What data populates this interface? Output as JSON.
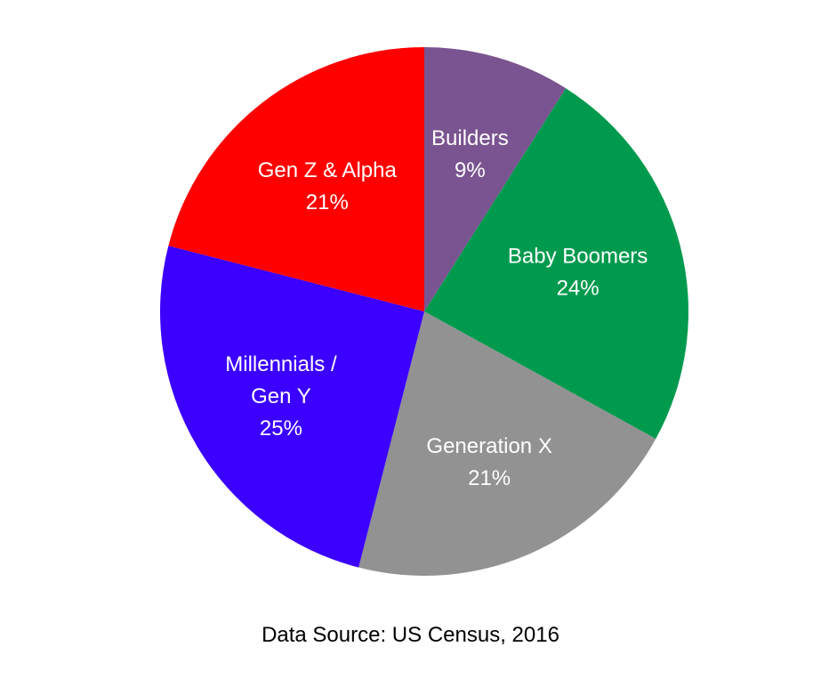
{
  "chart_data": {
    "type": "pie",
    "title": "",
    "start_angle_deg": 0,
    "direction": "clockwise",
    "slices": [
      {
        "label_lines": [
          "Builders"
        ],
        "value": 9,
        "value_label": "9%",
        "color": "#7a5490"
      },
      {
        "label_lines": [
          "Baby Boomers"
        ],
        "value": 24,
        "value_label": "24%",
        "color": "#009a4e"
      },
      {
        "label_lines": [
          "Generation X"
        ],
        "value": 21,
        "value_label": "21%",
        "color": "#929292"
      },
      {
        "label_lines": [
          "Millennials /",
          "Gen Y"
        ],
        "value": 25,
        "value_label": "25%",
        "color": "#3b00ff"
      },
      {
        "label_lines": [
          "Gen Z & Alpha"
        ],
        "value": 21,
        "value_label": "21%",
        "color": "#ff0000"
      }
    ],
    "legend": "none"
  },
  "footer": {
    "source": "Data Source: US Census, 2016"
  }
}
